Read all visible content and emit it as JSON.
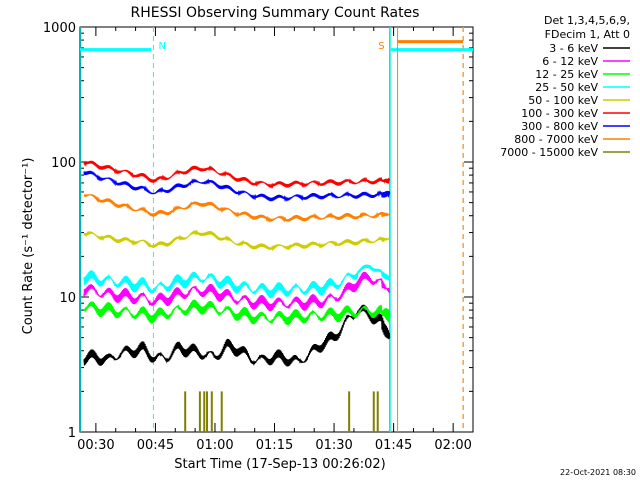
{
  "chart_data": {
    "type": "line",
    "title": "RHESSI Observing Summary Count Rates",
    "xlabel": "Start Time (17-Sep-13 00:26:02)",
    "ylabel": "Count Rate (s⁻¹ detector⁻¹)",
    "yscale": "log",
    "ylim": [
      1,
      1000
    ],
    "xlim_min": [
      26.0,
      125.0
    ],
    "x_ticks": [
      {
        "min": 30,
        "label": "00:30"
      },
      {
        "min": 45,
        "label": "00:45"
      },
      {
        "min": 60,
        "label": "01:00"
      },
      {
        "min": 75,
        "label": "01:15"
      },
      {
        "min": 90,
        "label": "01:30"
      },
      {
        "min": 105,
        "label": "01:45"
      },
      {
        "min": 120,
        "label": "02:00"
      }
    ],
    "y_ticks": [
      {
        "value": 1,
        "label": "1"
      },
      {
        "value": 10,
        "label": "10"
      },
      {
        "value": 100,
        "label": "100"
      },
      {
        "value": 1000,
        "label": "1000"
      }
    ],
    "legend_header": [
      "Det 1,3,4,5,6,9,",
      "FDecim 1, Att 0"
    ],
    "series": [
      {
        "name": "3 - 6 keV",
        "color": "#000000",
        "x": [
          27,
          30,
          33,
          36,
          39,
          42,
          45,
          48,
          51,
          54,
          57,
          60,
          63,
          66,
          69,
          72,
          75,
          78,
          81,
          84,
          87,
          90,
          93,
          96,
          99,
          102,
          104
        ],
        "values": [
          3.5,
          3.6,
          3.4,
          3.8,
          4.0,
          4.1,
          3.5,
          3.6,
          4.2,
          4.0,
          3.8,
          3.6,
          4.3,
          4.1,
          3.5,
          3.4,
          3.6,
          3.5,
          3.3,
          3.8,
          4.5,
          5.0,
          6.5,
          8.0,
          7.5,
          6.5,
          5.0
        ]
      },
      {
        "name": "6 - 12 keV",
        "color": "#ff00ff",
        "x": [
          27,
          30,
          33,
          36,
          39,
          42,
          45,
          48,
          51,
          54,
          57,
          60,
          63,
          66,
          69,
          72,
          75,
          78,
          81,
          84,
          87,
          90,
          93,
          96,
          99,
          102,
          104
        ],
        "values": [
          11.5,
          11,
          10.5,
          10.3,
          10,
          9.8,
          9.3,
          9.8,
          10.5,
          11,
          11.2,
          10.8,
          10.2,
          9.6,
          9.2,
          9.0,
          8.9,
          9.0,
          9.0,
          9.1,
          9.3,
          9.8,
          11,
          13,
          14,
          12.5,
          11
        ]
      },
      {
        "name": "12 - 25 keV",
        "color": "#00ff00",
        "x": [
          27,
          30,
          33,
          36,
          39,
          42,
          45,
          48,
          51,
          54,
          57,
          60,
          63,
          66,
          69,
          72,
          75,
          78,
          81,
          84,
          87,
          90,
          93,
          96,
          99,
          102,
          104
        ],
        "values": [
          8.5,
          8.2,
          8.0,
          7.8,
          7.6,
          7.5,
          7.2,
          7.6,
          8.0,
          8.3,
          8.5,
          8.2,
          7.8,
          7.5,
          7.2,
          7.0,
          7.0,
          7.1,
          7.1,
          7.2,
          7.3,
          7.4,
          7.6,
          7.8,
          7.9,
          7.6,
          7.4
        ]
      },
      {
        "name": "25 - 50 keV",
        "color": "#00ffff",
        "x": [
          27,
          30,
          33,
          36,
          39,
          42,
          45,
          48,
          51,
          54,
          57,
          60,
          63,
          66,
          69,
          72,
          75,
          78,
          81,
          84,
          87,
          90,
          93,
          96,
          99,
          102,
          104
        ],
        "values": [
          14,
          13.6,
          13.2,
          12.9,
          12.5,
          12.3,
          11.5,
          12.2,
          13,
          13.6,
          14,
          13.4,
          12.6,
          12,
          11.6,
          11.3,
          11.2,
          11.3,
          11.4,
          11.5,
          11.8,
          12.3,
          13.5,
          15.5,
          17,
          15,
          13.5
        ]
      },
      {
        "name": "50 - 100 keV",
        "color": "#cccc00",
        "x": [
          27,
          30,
          33,
          36,
          39,
          42,
          45,
          48,
          51,
          54,
          57,
          60,
          63,
          66,
          69,
          72,
          75,
          78,
          81,
          84,
          87,
          90,
          93,
          96,
          99,
          102,
          104
        ],
        "values": [
          30,
          28.5,
          27.5,
          26.5,
          26,
          25.5,
          24,
          25,
          27,
          29,
          30,
          28.5,
          26.5,
          25,
          24,
          23.5,
          23.5,
          23.8,
          24,
          24.3,
          24.6,
          25,
          25.3,
          25.6,
          26,
          26.5,
          27
        ]
      },
      {
        "name": "100 - 300 keV",
        "color": "#ff0000",
        "x": [
          27,
          30,
          33,
          36,
          39,
          42,
          45,
          48,
          51,
          54,
          57,
          60,
          63,
          66,
          69,
          72,
          75,
          78,
          81,
          84,
          87,
          90,
          93,
          96,
          99,
          102,
          104
        ],
        "values": [
          100,
          95,
          90,
          86,
          82,
          78,
          73,
          77,
          83,
          88,
          90,
          86,
          80,
          75,
          71,
          69,
          68,
          68.5,
          69,
          69.5,
          70,
          70.5,
          71,
          71.5,
          72,
          72.5,
          73
        ]
      },
      {
        "name": "300 - 800 keV",
        "color": "#0000ff",
        "x": [
          27,
          30,
          33,
          36,
          39,
          42,
          45,
          48,
          51,
          54,
          57,
          60,
          63,
          66,
          69,
          72,
          75,
          78,
          81,
          84,
          87,
          90,
          93,
          96,
          99,
          102,
          104
        ],
        "values": [
          85,
          79,
          74,
          70,
          66,
          63,
          59,
          62,
          66,
          70,
          72,
          69,
          64,
          60,
          57,
          55,
          54,
          54.5,
          55,
          55.5,
          56,
          56,
          56.5,
          56.5,
          57,
          57.5,
          58
        ]
      },
      {
        "name": "800 - 7000 keV",
        "color": "#ff8000",
        "x": [
          27,
          30,
          33,
          36,
          39,
          42,
          45,
          48,
          51,
          54,
          57,
          60,
          63,
          66,
          69,
          72,
          75,
          78,
          81,
          84,
          87,
          90,
          93,
          96,
          99,
          102,
          104
        ],
        "values": [
          58,
          54,
          51,
          48,
          45.5,
          43.5,
          41,
          42.5,
          45,
          48,
          49.5,
          47,
          44,
          41.5,
          40,
          38.5,
          38,
          38,
          38.3,
          38.6,
          39,
          39.2,
          39.5,
          39.7,
          40,
          40.5,
          41
        ]
      },
      {
        "name": "7000 - 15000 keV",
        "color": "#808000",
        "x": [],
        "values": []
      }
    ],
    "bursts_7000_15000": [
      52.5,
      56.2,
      57.3,
      58.0,
      59.2,
      61.7,
      93.8,
      100.0,
      101.0
    ],
    "state_bars": [
      {
        "color": "#00ffff",
        "x_start_min": 26.0,
        "x_end_min": 44.0,
        "value": 680
      },
      {
        "color": "#00ffff",
        "x_start_min": 104.3,
        "x_end_min": 125.0,
        "value": 680
      },
      {
        "color": "#ff8000",
        "x_start_min": 106.0,
        "x_end_min": 122.5,
        "value": 780
      }
    ],
    "markers": [
      {
        "x_min": 26.2,
        "color": "#00ffff",
        "style": "solid",
        "label": ""
      },
      {
        "x_min": 44.5,
        "color": "#00ffff",
        "style": "dashed",
        "label": "N"
      },
      {
        "x_min": 104.0,
        "color": "#ff8000",
        "style": "solid",
        "label": "S"
      },
      {
        "x_min": 104.3,
        "color": "#00ffff",
        "style": "solid",
        "label": ""
      },
      {
        "x_min": 106.0,
        "color": "#ff8000",
        "style": "solid",
        "label": ""
      },
      {
        "x_min": 122.5,
        "color": "#ff8000",
        "style": "dashed",
        "label": ""
      },
      {
        "x_min": 122.6,
        "color": "#00ffff",
        "style": "dashed",
        "label": ""
      }
    ],
    "grid": false
  },
  "footer_timestamp": "22-Oct-2021 08:30"
}
